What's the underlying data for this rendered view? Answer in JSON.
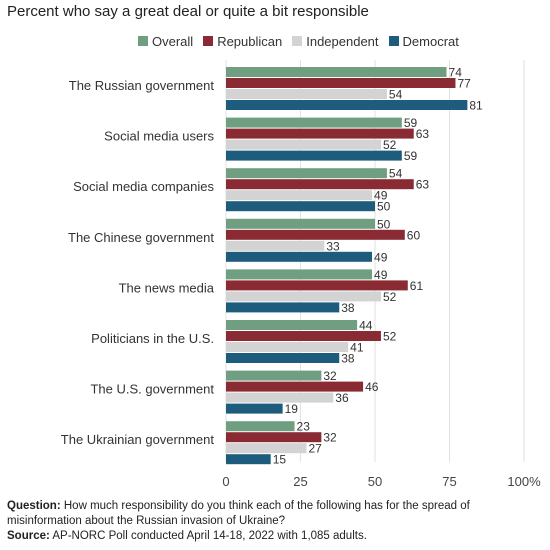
{
  "title": "Percent who say a great deal or quite a bit responsible",
  "colors": {
    "Overall": "#6f9f80",
    "Republican": "#8a2b34",
    "Independent": "#d3d3d3",
    "Democrat": "#1d5c7c"
  },
  "chart_data": {
    "type": "bar",
    "orientation": "horizontal",
    "categories": [
      "The Russian government",
      "Social media users",
      "Social media companies",
      "The Chinese government",
      "The news media",
      "Politicians in the U.S.",
      "The U.S. government",
      "The Ukrainian government"
    ],
    "series": [
      {
        "name": "Overall",
        "values": [
          74,
          59,
          54,
          50,
          49,
          44,
          32,
          23
        ]
      },
      {
        "name": "Republican",
        "values": [
          77,
          63,
          63,
          60,
          61,
          52,
          46,
          32
        ]
      },
      {
        "name": "Independent",
        "values": [
          54,
          52,
          49,
          33,
          52,
          41,
          36,
          27
        ]
      },
      {
        "name": "Democrat",
        "values": [
          81,
          59,
          50,
          49,
          38,
          38,
          19,
          15
        ]
      }
    ],
    "xlim": [
      0,
      100
    ],
    "xticks": [
      "0",
      "25",
      "50",
      "75",
      "100%"
    ],
    "grid": true,
    "legend_position": "top"
  },
  "footer": {
    "question_label": "Question:",
    "question_text": " How much responsibility do you think each of the following has for the spread of misinformation about the Russian invasion of Ukraine?",
    "source_label": "Source:",
    "source_text": " AP-NORC Poll conducted April 14-18, 2022 with 1,085 adults."
  }
}
